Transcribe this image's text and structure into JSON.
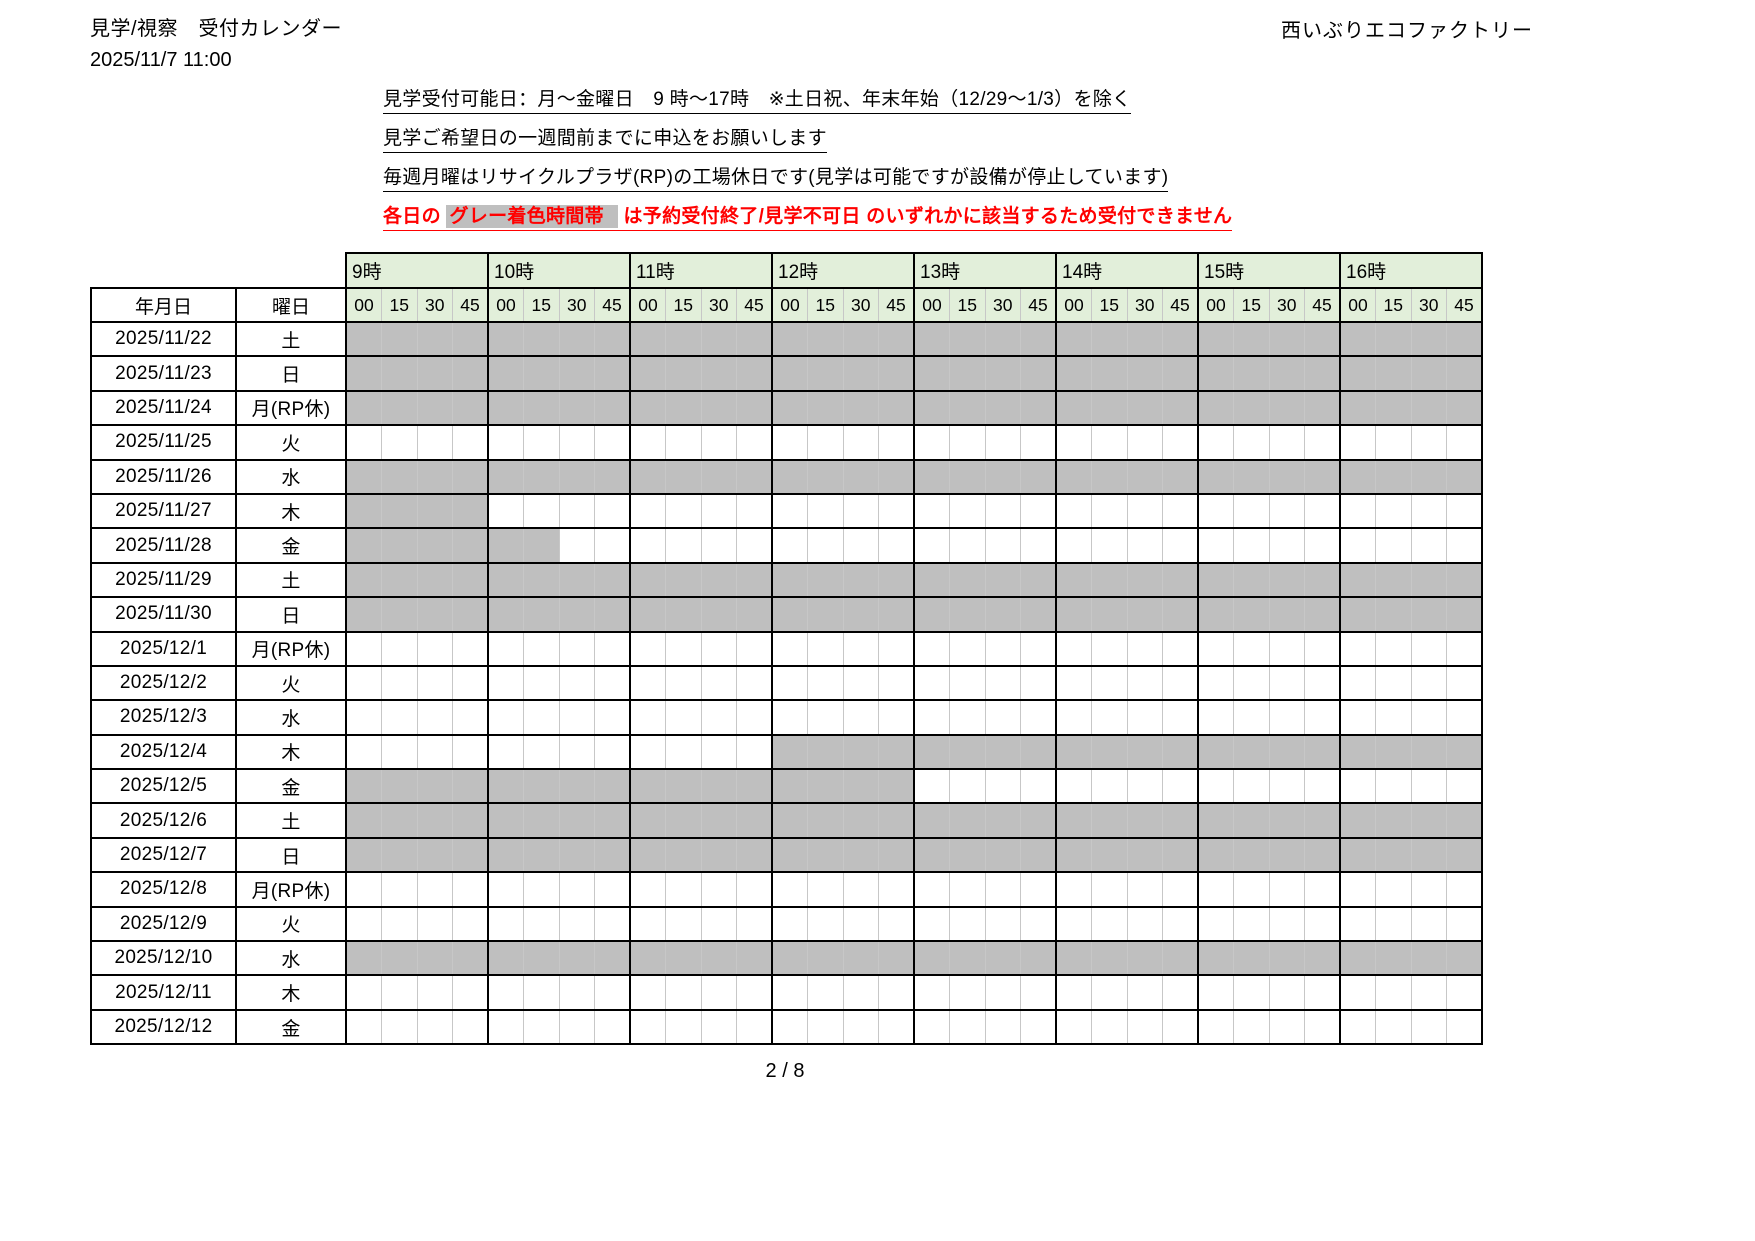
{
  "header": {
    "title": "見学/視察　受付カレンダー",
    "timestamp": "2025/11/7  11:00",
    "company": "西いぶりエコファクトリー"
  },
  "notes": {
    "line1": "見学受付可能日：月～金曜日　9 時～17時　※土日祝、年末年始（12/29～1/3）を除く",
    "line2": "見学ご希望日の一週間前までに申込をお願いします",
    "line3": "毎週月曜はリサイクルプラザ(RP)の工場休日です(見学は可能ですが設備が停止しています)",
    "line4_prefix": "各日の ",
    "line4_highlight": "グレー着色時間帯",
    "line4_suffix": " は予約受付終了/見学不可日 のいずれかに該当するため受付できません"
  },
  "colors": {
    "header_green": "#e2efda",
    "blocked_gray": "#bfbfbf",
    "alert_red": "#ff0000"
  },
  "table": {
    "date_header": "年月日",
    "weekday_header": "曜日",
    "hours": [
      "9時",
      "10時",
      "11時",
      "12時",
      "13時",
      "14時",
      "15時",
      "16時"
    ],
    "minutes": [
      "00",
      "15",
      "30",
      "45"
    ],
    "slot_count": 32,
    "rows": [
      {
        "date": "2025/11/22",
        "weekday": "土",
        "gray": [
          [
            0,
            32
          ]
        ]
      },
      {
        "date": "2025/11/23",
        "weekday": "日",
        "gray": [
          [
            0,
            32
          ]
        ]
      },
      {
        "date": "2025/11/24",
        "weekday": "月(RP休)",
        "gray": [
          [
            0,
            32
          ]
        ]
      },
      {
        "date": "2025/11/25",
        "weekday": "火",
        "gray": []
      },
      {
        "date": "2025/11/26",
        "weekday": "水",
        "gray": [
          [
            0,
            32
          ]
        ]
      },
      {
        "date": "2025/11/27",
        "weekday": "木",
        "gray": [
          [
            0,
            4
          ]
        ]
      },
      {
        "date": "2025/11/28",
        "weekday": "金",
        "gray": [
          [
            0,
            6
          ]
        ]
      },
      {
        "date": "2025/11/29",
        "weekday": "土",
        "gray": [
          [
            0,
            32
          ]
        ]
      },
      {
        "date": "2025/11/30",
        "weekday": "日",
        "gray": [
          [
            0,
            32
          ]
        ]
      },
      {
        "date": "2025/12/1",
        "weekday": "月(RP休)",
        "gray": []
      },
      {
        "date": "2025/12/2",
        "weekday": "火",
        "gray": []
      },
      {
        "date": "2025/12/3",
        "weekday": "水",
        "gray": []
      },
      {
        "date": "2025/12/4",
        "weekday": "木",
        "gray": [
          [
            12,
            32
          ]
        ]
      },
      {
        "date": "2025/12/5",
        "weekday": "金",
        "gray": [
          [
            0,
            16
          ]
        ]
      },
      {
        "date": "2025/12/6",
        "weekday": "土",
        "gray": [
          [
            0,
            32
          ]
        ]
      },
      {
        "date": "2025/12/7",
        "weekday": "日",
        "gray": [
          [
            0,
            32
          ]
        ]
      },
      {
        "date": "2025/12/8",
        "weekday": "月(RP休)",
        "gray": []
      },
      {
        "date": "2025/12/9",
        "weekday": "火",
        "gray": []
      },
      {
        "date": "2025/12/10",
        "weekday": "水",
        "gray": [
          [
            0,
            32
          ]
        ]
      },
      {
        "date": "2025/12/11",
        "weekday": "木",
        "gray": []
      },
      {
        "date": "2025/12/12",
        "weekday": "金",
        "gray": []
      }
    ]
  },
  "footer": {
    "page": "2 / 8"
  }
}
